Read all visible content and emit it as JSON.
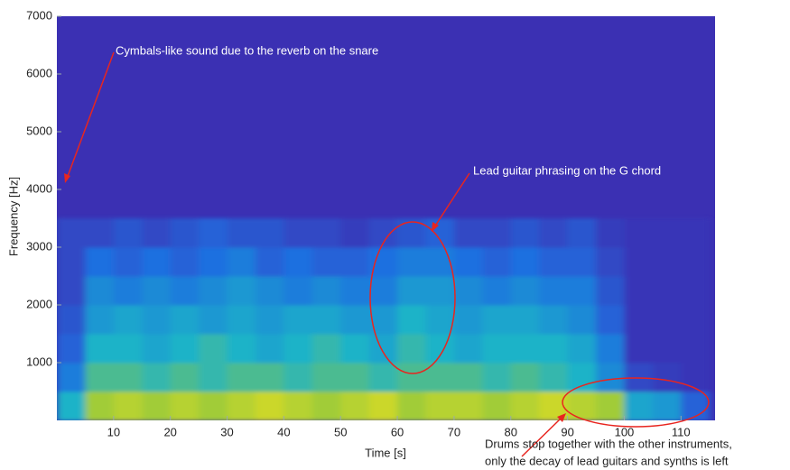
{
  "chart_data": {
    "type": "heatmap",
    "xlabel": "Time [s]",
    "ylabel": "Frequency [Hz]",
    "xlim": [
      0,
      116
    ],
    "ylim": [
      0,
      7000
    ],
    "xticks": [
      10,
      20,
      30,
      40,
      50,
      60,
      70,
      80,
      90,
      100,
      110
    ],
    "yticks": [
      1000,
      2000,
      3000,
      4000,
      5000,
      6000,
      7000
    ],
    "colormap": [
      "#3b30b3",
      "#1f6fe0",
      "#1fb3c8",
      "#8cc63f",
      "#f5e31c"
    ],
    "x_bins": [
      0,
      5,
      10,
      15,
      20,
      25,
      30,
      35,
      40,
      45,
      50,
      55,
      60,
      65,
      70,
      75,
      80,
      85,
      90,
      95,
      100,
      105,
      110,
      115
    ],
    "y_bins": [
      0,
      500,
      1000,
      1500,
      2000,
      2500,
      3000,
      3500
    ],
    "z": [
      [
        0.5,
        0.8,
        0.85,
        0.8,
        0.85,
        0.8,
        0.85,
        0.9,
        0.85,
        0.8,
        0.85,
        0.9,
        0.8,
        0.85,
        0.85,
        0.8,
        0.85,
        0.9,
        0.85,
        0.8,
        0.45,
        0.4,
        0.2
      ],
      [
        0.3,
        0.6,
        0.6,
        0.55,
        0.6,
        0.55,
        0.6,
        0.6,
        0.55,
        0.6,
        0.6,
        0.55,
        0.6,
        0.6,
        0.6,
        0.55,
        0.6,
        0.55,
        0.5,
        0.35,
        0.1,
        0.05,
        0.02
      ],
      [
        0.2,
        0.5,
        0.5,
        0.45,
        0.5,
        0.55,
        0.5,
        0.45,
        0.5,
        0.55,
        0.5,
        0.45,
        0.55,
        0.5,
        0.45,
        0.5,
        0.5,
        0.5,
        0.45,
        0.3,
        0.02,
        0.02,
        0.02
      ],
      [
        0.15,
        0.4,
        0.45,
        0.4,
        0.45,
        0.4,
        0.45,
        0.4,
        0.45,
        0.45,
        0.4,
        0.4,
        0.5,
        0.45,
        0.4,
        0.45,
        0.45,
        0.4,
        0.35,
        0.2,
        0.02,
        0.02,
        0.02
      ],
      [
        0.1,
        0.35,
        0.3,
        0.35,
        0.3,
        0.35,
        0.4,
        0.35,
        0.3,
        0.35,
        0.3,
        0.3,
        0.4,
        0.4,
        0.35,
        0.3,
        0.35,
        0.3,
        0.3,
        0.15,
        0.02,
        0.02,
        0.02
      ],
      [
        0.1,
        0.25,
        0.2,
        0.25,
        0.2,
        0.25,
        0.3,
        0.2,
        0.25,
        0.2,
        0.2,
        0.25,
        0.3,
        0.3,
        0.25,
        0.2,
        0.25,
        0.2,
        0.2,
        0.1,
        0.02,
        0.02,
        0.02
      ],
      [
        0.1,
        0.1,
        0.15,
        0.1,
        0.15,
        0.2,
        0.15,
        0.15,
        0.1,
        0.1,
        0.05,
        0.1,
        0.15,
        0.2,
        0.1,
        0.1,
        0.15,
        0.1,
        0.15,
        0.05,
        0.02,
        0.02,
        0.02
      ]
    ],
    "annotations": [
      "Cymbals-like sound due to the reverb on the snare",
      "Lead guitar phrasing on the G chord",
      "Drums stop together with the other instruments,",
      "only the decay of lead guitars and synths is left"
    ]
  }
}
